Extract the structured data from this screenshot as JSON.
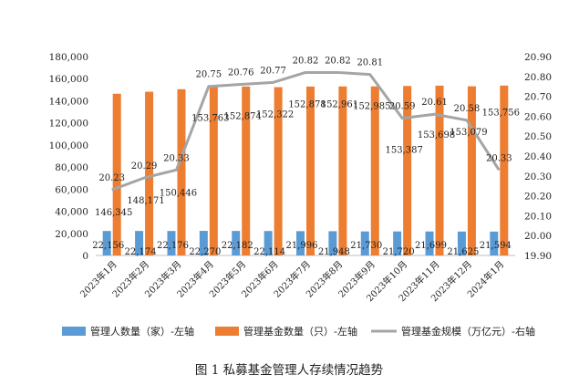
{
  "chart_data": {
    "type": "bar",
    "categories": [
      "2023年1月",
      "2023年2月",
      "2023年3月",
      "2023年4月",
      "2023年5月",
      "2023年6月",
      "2023年7月",
      "2023年8月",
      "2023年9月",
      "2023年10月",
      "2023年11月",
      "2023年12月",
      "2024年1月"
    ],
    "series": [
      {
        "name": "管理人数量（家）-左轴",
        "type": "bar",
        "axis": "left",
        "color": "#5B9BD5",
        "values": [
          22156,
          22174,
          22176,
          22270,
          22182,
          22114,
          21996,
          21948,
          21730,
          21720,
          21699,
          21625,
          21594
        ],
        "labels": [
          "22,156",
          "22,174",
          "22,176",
          "22,270",
          "22,182",
          "22,114",
          "21,996",
          "21,948",
          "21,730",
          "21,720",
          "21,699",
          "21,625",
          "21,594"
        ]
      },
      {
        "name": "管理基金数量（只）-左轴",
        "type": "bar",
        "axis": "left",
        "color": "#ED7D31",
        "values": [
          146345,
          148171,
          150446,
          153763,
          152874,
          152322,
          152878,
          152961,
          152985,
          153387,
          153698,
          153079,
          153756
        ],
        "labels": [
          "146,345",
          "148,171",
          "150,446",
          "153,763",
          "152,874",
          "152,322",
          "152,878",
          "152,961",
          "152,985",
          "153,387",
          "153,698",
          "153,079",
          "153,756"
        ]
      },
      {
        "name": "管理基金规模（万亿元）-右轴",
        "type": "line",
        "axis": "right",
        "color": "#A5A5A5",
        "values": [
          20.23,
          20.29,
          20.33,
          20.75,
          20.76,
          20.77,
          20.82,
          20.82,
          20.81,
          20.59,
          20.61,
          20.58,
          20.33
        ],
        "labels": [
          "20.23",
          "20.29",
          "20.33",
          "20.75",
          "20.76",
          "20.77",
          "20.82",
          "20.82",
          "20.81",
          "20.59",
          "20.61",
          "20.58",
          "20.33"
        ]
      }
    ],
    "y_left": {
      "range": [
        0,
        180000
      ],
      "ticks": [
        0,
        20000,
        40000,
        60000,
        80000,
        100000,
        120000,
        140000,
        160000,
        180000
      ],
      "tick_labels": [
        "0",
        "20,000",
        "40,000",
        "60,000",
        "80,000",
        "100,000",
        "120,000",
        "140,000",
        "160,000",
        "180,000"
      ]
    },
    "y_right": {
      "range": [
        19.9,
        20.9
      ],
      "ticks": [
        19.9,
        20.0,
        20.1,
        20.2,
        20.3,
        20.4,
        20.5,
        20.6,
        20.7,
        20.8,
        20.9
      ],
      "tick_labels": [
        "19.90",
        "20.00",
        "20.10",
        "20.20",
        "20.30",
        "20.40",
        "20.50",
        "20.60",
        "20.70",
        "20.80",
        "20.90"
      ]
    },
    "grid": false,
    "legend_position": "bottom",
    "caption": "图 1  私募基金管理人存续情况趋势"
  }
}
